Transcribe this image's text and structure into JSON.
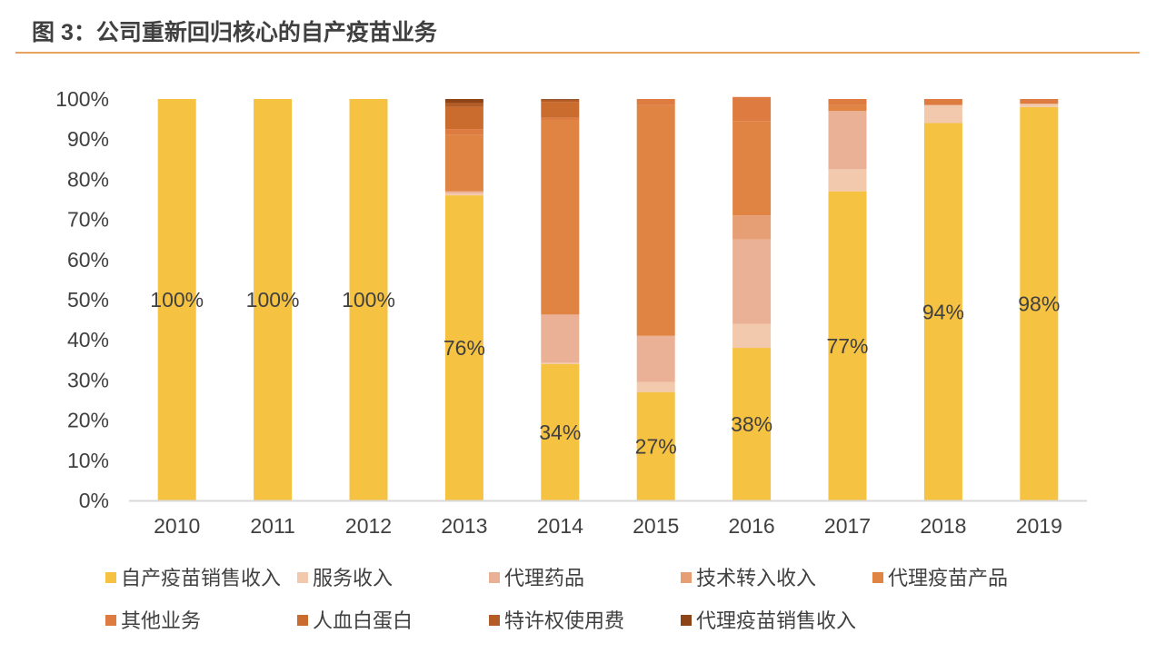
{
  "figure": {
    "title": "图 3：公司重新回归核心的自产疫苗业务"
  },
  "colors": {
    "title_rule": "#E9A35F",
    "axis": "#D9D9D9",
    "text": "#404040",
    "series": [
      "#F6C242",
      "#F2C9AC",
      "#EBB197",
      "#E69E74",
      "#E08444",
      "#DD7B41",
      "#C96C2E",
      "#B45C26",
      "#8E4416"
    ]
  },
  "chart_data": {
    "type": "bar",
    "stacked": true,
    "title": "",
    "xlabel": "",
    "ylabel": "",
    "ylim": [
      0,
      100
    ],
    "y_ticks": [
      "0%",
      "10%",
      "20%",
      "30%",
      "40%",
      "50%",
      "60%",
      "70%",
      "80%",
      "90%",
      "100%"
    ],
    "categories": [
      "2010",
      "2011",
      "2012",
      "2013",
      "2014",
      "2015",
      "2016",
      "2017",
      "2018",
      "2019"
    ],
    "series": [
      {
        "name": "自产疫苗销售收入",
        "values": [
          100,
          100,
          100,
          76,
          34,
          27,
          38,
          77,
          94,
          98
        ]
      },
      {
        "name": "服务收入",
        "values": [
          0,
          0,
          0,
          0.5,
          0.3,
          2.5,
          6,
          5.5,
          4.5,
          0.8
        ]
      },
      {
        "name": "代理药品",
        "values": [
          0,
          0,
          0,
          0.5,
          12,
          11.5,
          21,
          14.5,
          0,
          0
        ]
      },
      {
        "name": "技术转入收入",
        "values": [
          0,
          0,
          0,
          0,
          0,
          0,
          6,
          0,
          0,
          0
        ]
      },
      {
        "name": "代理疫苗产品",
        "values": [
          0,
          0,
          0,
          14,
          48.5,
          57.5,
          23.5,
          1.5,
          0,
          0
        ]
      },
      {
        "name": "其他业务",
        "values": [
          0,
          0,
          0,
          1.5,
          0.5,
          1.5,
          6,
          1.5,
          1.5,
          1.2
        ]
      },
      {
        "name": "人血白蛋白",
        "values": [
          0,
          0,
          0,
          5.5,
          4,
          0,
          0,
          0,
          0,
          0
        ]
      },
      {
        "name": "特许权使用费",
        "values": [
          0,
          0,
          0,
          1,
          0.5,
          0,
          0,
          0,
          0,
          0
        ]
      },
      {
        "name": "代理疫苗销售收入",
        "values": [
          0,
          0,
          0,
          1,
          0.2,
          0,
          0,
          0,
          0,
          0
        ]
      }
    ],
    "data_labels": [
      "100%",
      "100%",
      "100%",
      "76%",
      "34%",
      "27%",
      "38%",
      "77%",
      "94%",
      "98%"
    ],
    "legend_position": "bottom",
    "grid": false
  }
}
